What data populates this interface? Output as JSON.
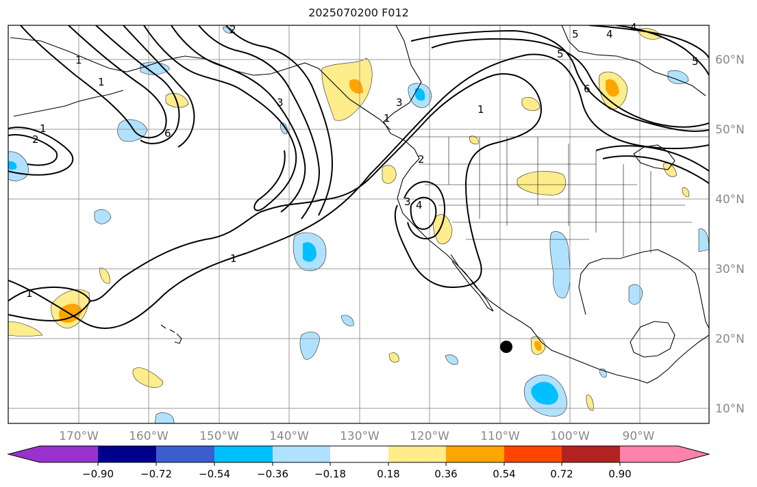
{
  "title": "2025070200 F012",
  "lon_labels": [
    "170°W",
    "160°W",
    "150°W",
    "140°W",
    "130°W",
    "120°W",
    "110°W",
    "100°W",
    "90°W"
  ],
  "lat_labels": [
    "60°N",
    "50°N",
    "40°N",
    "30°N",
    "20°N",
    "10°N"
  ],
  "colorbar": {
    "ticks": [
      "−0.90",
      "−0.72",
      "−0.54",
      "−0.36",
      "−0.18",
      "0.18",
      "0.36",
      "0.54",
      "0.72",
      "0.90"
    ],
    "colors": [
      "#9932CC",
      "#00008B",
      "#3A5FCD",
      "#00BFFF",
      "#B0E2FF",
      "#FFFFFF",
      "#FFEC8B",
      "#FFA500",
      "#FF4500",
      "#B22222",
      "#FF82AB"
    ]
  },
  "contour_labels": [
    "1",
    "2",
    "3",
    "5",
    "6",
    "4",
    "1",
    "1",
    "1",
    "2",
    "3",
    "4",
    "5",
    "6",
    "5",
    "4",
    "1",
    "1",
    "1",
    "2",
    "3"
  ]
}
